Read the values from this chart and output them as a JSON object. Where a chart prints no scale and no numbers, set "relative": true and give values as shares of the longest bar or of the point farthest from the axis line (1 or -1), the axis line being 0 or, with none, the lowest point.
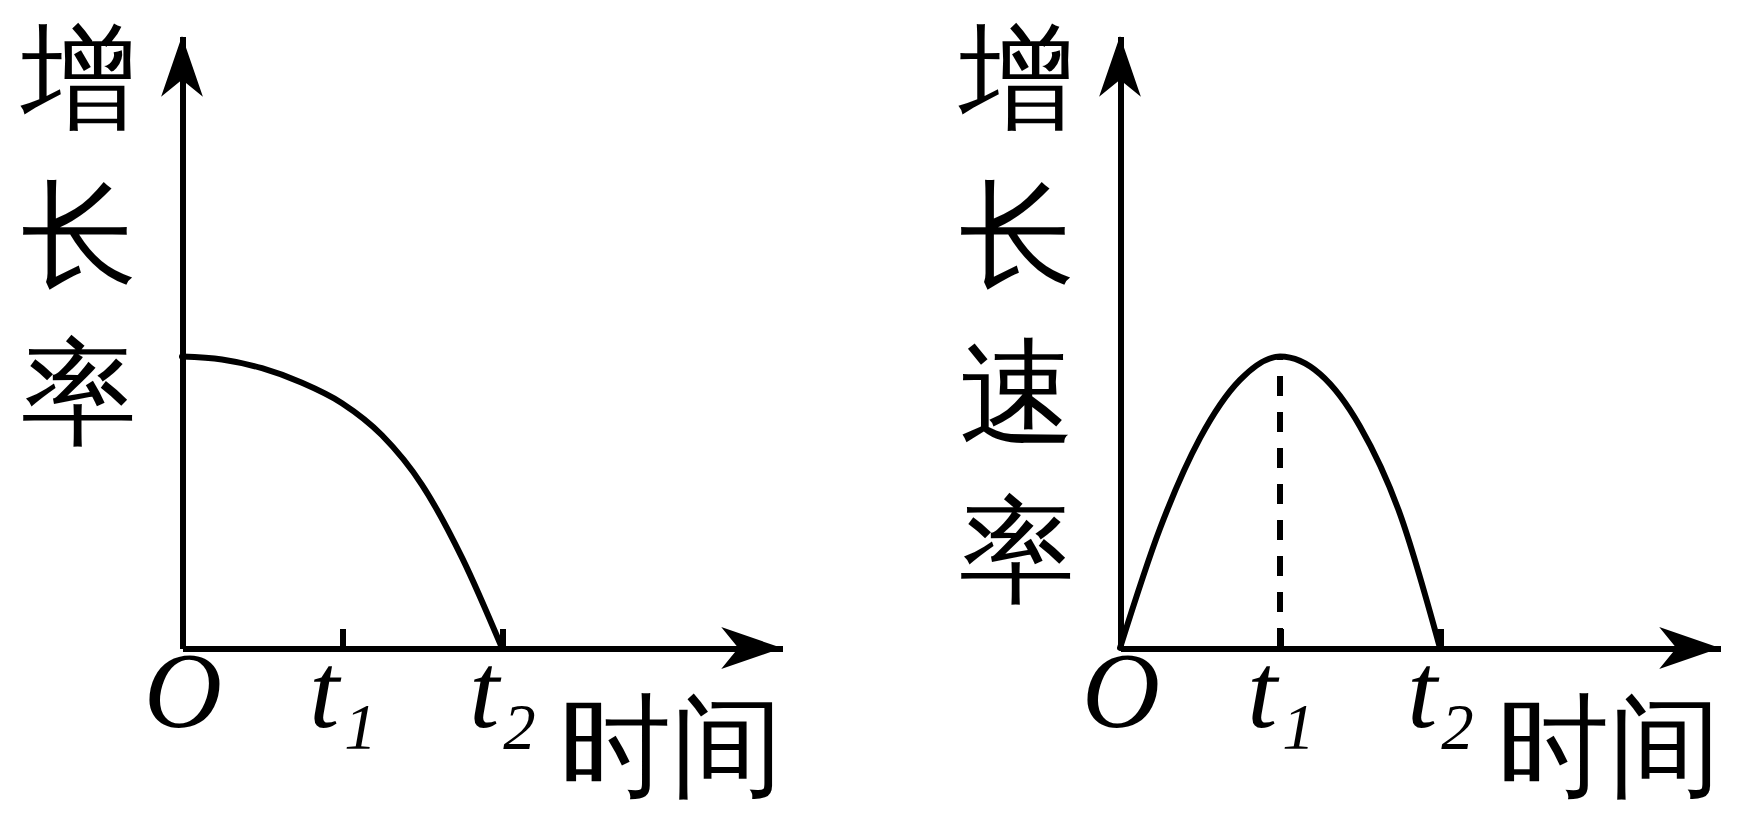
{
  "chart_data": [
    {
      "type": "line",
      "ylabel": "增长率",
      "xlabel": "时间",
      "relative": true,
      "color": "#000000",
      "categories": [
        "O",
        null,
        null,
        null,
        "t₁",
        null,
        null,
        null,
        "t₂",
        null,
        null,
        null,
        null,
        null,
        null,
        null
      ],
      "values": [
        1,
        0.99,
        0.96,
        0.91,
        0.84,
        0.73,
        0.56,
        0.31,
        0,
        null,
        null,
        null,
        null,
        null,
        null,
        null
      ]
    },
    {
      "type": "line",
      "ylabel": "增长速率",
      "xlabel": "时间",
      "relative": true,
      "color": "#000000",
      "categories": [
        "O",
        null,
        null,
        null,
        "t₁",
        null,
        null,
        null,
        "t₂",
        null,
        null,
        null,
        null,
        null,
        null,
        null
      ],
      "values": [
        0,
        0.41,
        0.72,
        0.92,
        1,
        0.94,
        0.76,
        0.46,
        0,
        null,
        null,
        null,
        null,
        null,
        null,
        null
      ],
      "ref_lines": [
        {
          "axis": "x",
          "value": "t₁",
          "line_style": "dashed"
        }
      ]
    }
  ]
}
